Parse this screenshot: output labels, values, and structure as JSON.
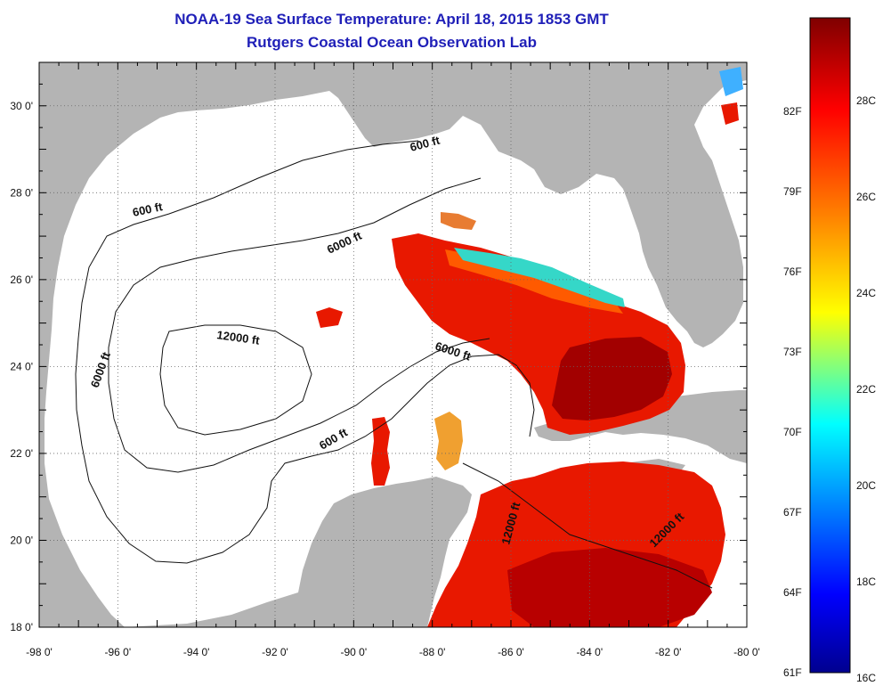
{
  "title": {
    "line1": "NOAA-19 Sea Surface Temperature:  April 18, 2015 1853 GMT",
    "line2": "Rutgers Coastal Ocean Observation Lab"
  },
  "map": {
    "lon_range": [
      -98,
      -80
    ],
    "lat_range": [
      18,
      31
    ],
    "lon_ticks": [
      "-98 0'",
      "-96 0'",
      "-94 0'",
      "-92 0'",
      "-90 0'",
      "-88 0'",
      "-86 0'",
      "-84 0'",
      "-82 0'",
      "-80 0'"
    ],
    "lat_ticks": [
      "18 0'",
      "20 0'",
      "22 0'",
      "24 0'",
      "26 0'",
      "28 0'",
      "30 0'"
    ],
    "grid": "dotted",
    "land_color": "#b4b4b4",
    "water_color": "#ffffff",
    "contour_labels": [
      {
        "id": "c600-north",
        "text": "600 ft"
      },
      {
        "id": "c600-west",
        "text": "600 ft"
      },
      {
        "id": "c6000-north",
        "text": "6000 ft"
      },
      {
        "id": "c6000-west",
        "text": "6000 ft"
      },
      {
        "id": "c6000-central",
        "text": "6000 ft"
      },
      {
        "id": "c12000",
        "text": "12000 ft"
      },
      {
        "id": "c600-south",
        "text": "600 ft"
      },
      {
        "id": "c12000-yucatan",
        "text": "12000 ft"
      },
      {
        "id": "c12000-cayman",
        "text": "12000 ft"
      }
    ]
  },
  "colorbar": {
    "fahrenheit": [
      "82F",
      "79F",
      "76F",
      "73F",
      "70F",
      "67F",
      "64F",
      "61F"
    ],
    "celsius": [
      "28C",
      "26C",
      "24C",
      "22C",
      "20C",
      "18C",
      "16C"
    ],
    "colors": {
      "top": "#7f0000",
      "red": "#ff0000",
      "orange": "#ff8000",
      "yellow": "#ffff00",
      "cyan": "#00ffff",
      "blue": "#0000ff",
      "bottom": "#00008f"
    }
  }
}
